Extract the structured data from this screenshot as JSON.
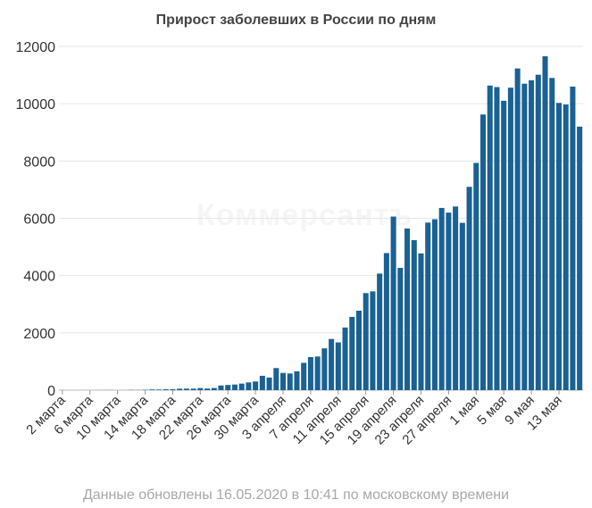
{
  "chart_data": {
    "type": "bar",
    "title": "Прирост заболевших в России по дням",
    "xlabel": "",
    "ylabel": "",
    "ylim": [
      0,
      12000
    ],
    "yticks": [
      0,
      2000,
      4000,
      6000,
      8000,
      10000,
      12000
    ],
    "grid": true,
    "legend": "none",
    "bar_color": "#1a6194",
    "x_tick_labels": [
      "2 марта",
      "6 марта",
      "10 марта",
      "14 марта",
      "18 марта",
      "22 марта",
      "26 марта",
      "30 марта",
      "3 апреля",
      "7 апреля",
      "11 апреля",
      "15 апреля",
      "19 апреля",
      "23 апреля",
      "27 апреля",
      "1 мая",
      "5 мая",
      "9 мая",
      "13 мая"
    ],
    "categories": [
      "2 марта",
      "3 марта",
      "4 марта",
      "5 марта",
      "6 марта",
      "7 марта",
      "8 марта",
      "9 марта",
      "10 марта",
      "11 марта",
      "12 марта",
      "13 марта",
      "14 марта",
      "15 марта",
      "16 марта",
      "17 марта",
      "18 марта",
      "19 марта",
      "20 марта",
      "21 марта",
      "22 марта",
      "23 марта",
      "24 марта",
      "25 марта",
      "26 марта",
      "27 марта",
      "28 марта",
      "29 марта",
      "30 марта",
      "31 марта",
      "1 апреля",
      "2 апреля",
      "3 апреля",
      "4 апреля",
      "5 апреля",
      "6 апреля",
      "7 апреля",
      "8 апреля",
      "9 апреля",
      "10 апреля",
      "11 апреля",
      "12 апреля",
      "13 апреля",
      "14 апреля",
      "15 апреля",
      "16 апреля",
      "17 апреля",
      "18 апреля",
      "19 апреля",
      "20 апреля",
      "21 апреля",
      "22 апреля",
      "23 апреля",
      "24 апреля",
      "25 апреля",
      "26 апреля",
      "27 апреля",
      "28 апреля",
      "29 апреля",
      "30 апреля",
      "1 мая",
      "2 мая",
      "3 мая",
      "4 мая",
      "5 мая",
      "6 мая",
      "7 мая",
      "8 мая",
      "9 мая",
      "10 мая",
      "11 мая",
      "12 мая",
      "13 мая",
      "14 мая",
      "15 мая",
      "16 мая"
    ],
    "values": [
      1,
      0,
      0,
      1,
      1,
      2,
      3,
      3,
      0,
      2,
      8,
      6,
      14,
      25,
      22,
      30,
      35,
      52,
      54,
      53,
      71,
      57,
      74,
      163,
      182,
      196,
      228,
      270,
      302,
      501,
      440,
      771,
      601,
      582,
      658,
      954,
      1154,
      1175,
      1459,
      1786,
      1667,
      2186,
      2558,
      2774,
      3388,
      3448,
      4070,
      4785,
      6060,
      4268,
      5642,
      5236,
      4774,
      5849,
      5966,
      6361,
      6198,
      6411,
      5841,
      7099,
      7933,
      9623,
      10633,
      10581,
      10102,
      10559,
      11231,
      10699,
      10817,
      11012,
      11656,
      10899,
      10028,
      9974,
      10598,
      9200
    ]
  },
  "footer": "Данные обновлены 16.05.2020 в 10:41 по московскому времени",
  "watermark": "Коммерсантъ"
}
